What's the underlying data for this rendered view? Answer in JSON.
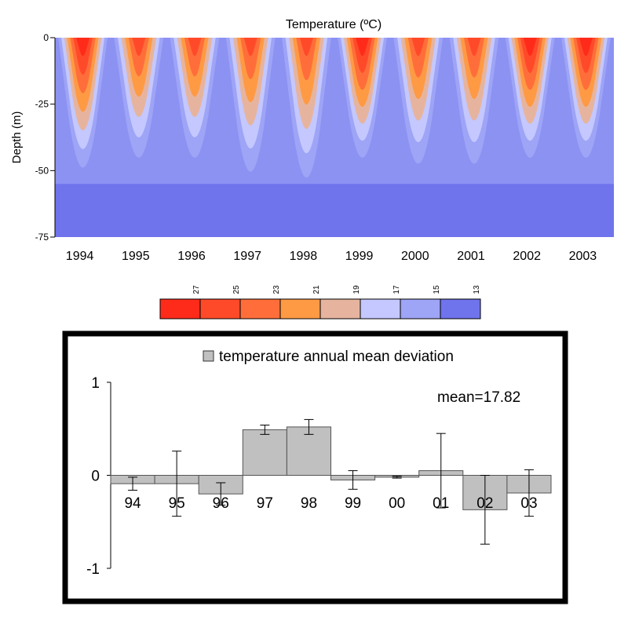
{
  "chart_data": [
    {
      "type": "heatmap",
      "title": "Temperature (ºC)",
      "ylabel": "Depth (m)",
      "xlabel": "",
      "x_ticks": [
        "1994",
        "1995",
        "1996",
        "1997",
        "1998",
        "1999",
        "2000",
        "2001",
        "2002",
        "2003"
      ],
      "y_ticks": [
        "0",
        "-25",
        "-50",
        "-75"
      ],
      "ylim": [
        -75,
        0
      ],
      "colorbar": {
        "labels": [
          "27",
          "25",
          "23",
          "21",
          "19",
          "17",
          "15",
          "13"
        ],
        "colors": [
          "#ff2b1a",
          "#ff4a2a",
          "#ff6e3a",
          "#ff9a44",
          "#e6b49e",
          "#c4c8ff",
          "#9ea4f6",
          "#6f73ec"
        ]
      },
      "series": [
        {
          "year": "1994",
          "surface_temp": 27,
          "thermocline_depth": 50
        },
        {
          "year": "1995",
          "surface_temp": 25,
          "thermocline_depth": 45
        },
        {
          "year": "1996",
          "surface_temp": 25,
          "thermocline_depth": 45
        },
        {
          "year": "1997",
          "surface_temp": 25,
          "thermocline_depth": 52
        },
        {
          "year": "1998",
          "surface_temp": 25,
          "thermocline_depth": 55
        },
        {
          "year": "1999",
          "surface_temp": 27,
          "thermocline_depth": 45
        },
        {
          "year": "2000",
          "surface_temp": 25,
          "thermocline_depth": 48
        },
        {
          "year": "2001",
          "surface_temp": 25,
          "thermocline_depth": 48
        },
        {
          "year": "2002",
          "surface_temp": 27,
          "thermocline_depth": 45
        },
        {
          "year": "2003",
          "surface_temp": 27,
          "thermocline_depth": 45
        }
      ]
    },
    {
      "type": "bar",
      "legend": "temperature annual mean deviation",
      "annotation": "mean=17.82",
      "categories": [
        "94",
        "95",
        "96",
        "97",
        "98",
        "99",
        "00",
        "01",
        "02",
        "03"
      ],
      "values": [
        -0.09,
        -0.09,
        -0.2,
        0.49,
        0.52,
        -0.05,
        -0.02,
        0.05,
        -0.37,
        -0.19
      ],
      "error": [
        0.07,
        0.35,
        0.12,
        0.05,
        0.08,
        0.1,
        0.01,
        0.4,
        0.37,
        0.25
      ],
      "ylim": [
        -1,
        1
      ],
      "y_ticks": [
        "1",
        "0",
        "-1"
      ],
      "bar_color": "#c0c0c0"
    }
  ]
}
